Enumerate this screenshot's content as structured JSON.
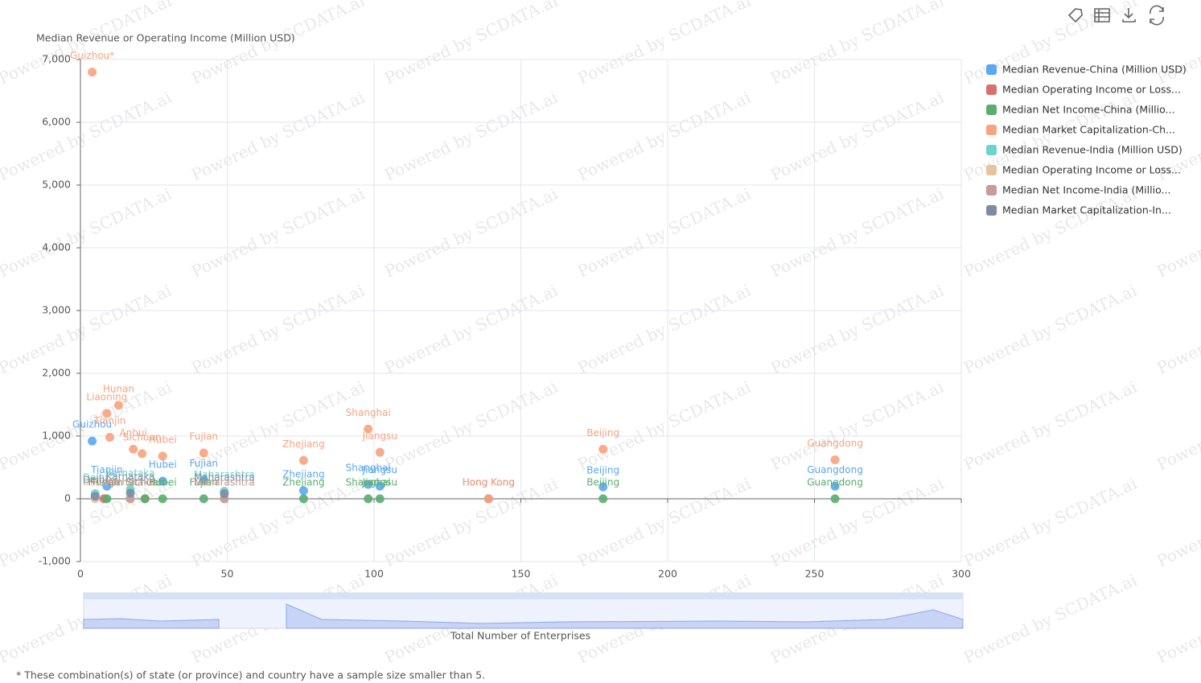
{
  "chart_data": {
    "type": "scatter",
    "y_axis_title": "Median Revenue or Operating Income (Million USD)",
    "x_axis_title": "Total Number of Enterprises",
    "footnote": "* These combination(s) of state (or province) and country have a sample size smaller than 5.",
    "watermark": "Powered by SCDATA.ai",
    "xlim": [
      0,
      300
    ],
    "xticks": [
      0,
      50,
      100,
      150,
      200,
      250,
      300
    ],
    "ylim": [
      -1000,
      7000
    ],
    "yticks": [
      {
        "value": -1000,
        "label": "-1,000"
      },
      0,
      {
        "value": 1000,
        "label": "1,000"
      },
      {
        "value": 2000,
        "label": "2,000"
      },
      {
        "value": 3000,
        "label": "3,000"
      },
      {
        "value": 4000,
        "label": "4,000"
      },
      {
        "value": 5000,
        "label": "5,000"
      },
      {
        "value": 6000,
        "label": "6,000"
      },
      {
        "value": 7000,
        "label": "7,000"
      }
    ],
    "grid": true,
    "series": [
      {
        "name": "Median Revenue-China (Million USD)",
        "color": "#5aa7f2",
        "x": [
          4,
          98,
          102,
          178,
          257,
          76,
          42,
          139,
          28,
          9
        ],
        "values": [
          920,
          230,
          200,
          190,
          200,
          130,
          300,
          0,
          280,
          200
        ],
        "labels": [
          "Guizhou",
          "Shanghai",
          "Jiangsu",
          "Beijing",
          "Guangdong",
          "Zhejiang",
          "Fujian",
          "Hong Kong",
          "Hubei",
          "Tianjin"
        ]
      },
      {
        "name": "Median Operating Income or Loss...",
        "color": "#d8716c",
        "x": [
          139,
          22,
          8
        ],
        "values": [
          0,
          0,
          0
        ],
        "labels": [
          "Hong Kong",
          "Sichuan",
          "Hunan"
        ]
      },
      {
        "name": "Median Net Income-China (Millio...",
        "color": "#5aad6f",
        "x": [
          257,
          178,
          102,
          98,
          76,
          42,
          28,
          9,
          22
        ],
        "values": [
          0,
          0,
          0,
          0,
          0,
          0,
          0,
          0,
          0
        ],
        "labels": [
          "Guangdong",
          "Beijing",
          "Jiangsu",
          "Shanghai",
          "Zhejiang",
          "Fujian",
          "Hubei",
          "Tianjin",
          "Sichuan"
        ]
      },
      {
        "name": "Median Market Capitalization-Ch...",
        "color": "#f7a37f",
        "x": [
          4,
          13,
          9,
          98,
          102,
          178,
          257,
          76,
          42,
          28,
          21,
          18,
          139,
          10
        ],
        "values": [
          6800,
          1490,
          1360,
          1110,
          740,
          790,
          620,
          610,
          730,
          680,
          720,
          790,
          0,
          980
        ],
        "labels": [
          "Guizhou*",
          "Hunan",
          "Liaoning",
          "Shanghai",
          "Jiangsu",
          "Beijing",
          "Guangdong",
          "Zhejiang",
          "Fujian",
          "Hubei",
          "Sichuan",
          "Anhui",
          "Hong Kong",
          "Tianjin"
        ]
      },
      {
        "name": "Median Revenue-India (Million USD)",
        "color": "#6dd3ce",
        "x": [
          49,
          17,
          5
        ],
        "values": [
          120,
          150,
          80
        ],
        "labels": [
          "Maharashtra",
          "Karnataka",
          "Delhi"
        ]
      },
      {
        "name": "Median Operating Income or Loss...",
        "color": "#e6c49c",
        "x": [
          49,
          17,
          5
        ],
        "values": [
          0,
          0,
          0
        ],
        "labels": [
          "Maharashtra",
          "Karnataka",
          "Delhi"
        ]
      },
      {
        "name": "Median Net Income-India (Millio...",
        "color": "#c79b99",
        "x": [
          49,
          17
        ],
        "values": [
          0,
          0
        ],
        "labels": [
          "Maharashtra",
          "Karnataka"
        ]
      },
      {
        "name": "Median Market Capitalization-In...",
        "color": "#7c8ca3",
        "x": [
          49,
          17,
          5
        ],
        "values": [
          80,
          90,
          40
        ],
        "labels": [
          "Maharashtra",
          "Karnataka",
          "Delhi"
        ]
      }
    ]
  }
}
